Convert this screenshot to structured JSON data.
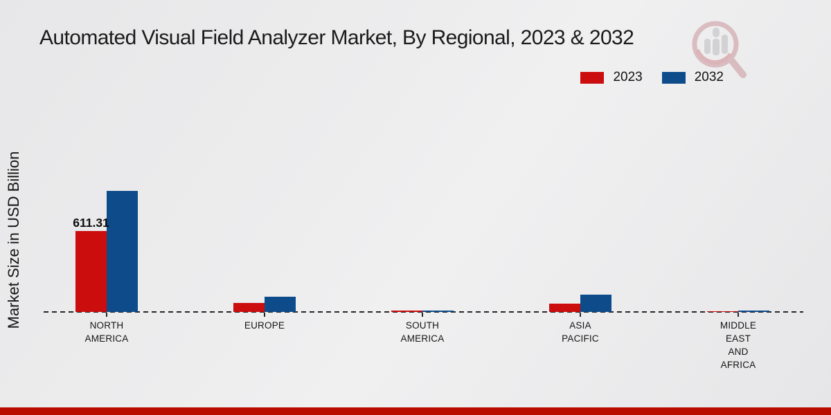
{
  "title": "Automated Visual Field Analyzer Market, By Regional, 2023 & 2032",
  "colors": {
    "bar_2023_red": "#cb0d0e",
    "bar_2032_blue": "#0d4b8a",
    "footer_red": "#b90b00",
    "background_gray": "#ebebed",
    "text": "#1a1a1a"
  },
  "legend": {
    "items": [
      {
        "label": "2023",
        "color": "#cb0d0e"
      },
      {
        "label": "2032",
        "color": "#0d4b8a"
      }
    ]
  },
  "watermark_icon": "magnifier-analytics-logo-watermark",
  "chart_data": {
    "type": "bar",
    "title": "Automated Visual Field Analyzer Market, By Regional, 2023 & 2032",
    "xlabel": "",
    "ylabel": "Market Size in USD Billion",
    "categories": [
      "NORTH\nAMERICA",
      "EUROPE",
      "SOUTH\nAMERICA",
      "ASIA\nPACIFIC",
      "MIDDLE\nEAST\nAND\nAFRICA"
    ],
    "series": [
      {
        "name": "2023",
        "color": "#cb0d0e",
        "values": [
          611.31,
          68,
          8,
          64,
          7
        ]
      },
      {
        "name": "2032",
        "color": "#0d4b8a",
        "values": [
          913,
          117,
          10,
          129,
          9
        ]
      }
    ],
    "value_labels": [
      {
        "series_index": 0,
        "category_index": 0,
        "text": "611.31"
      }
    ],
    "ylim": [
      0,
      960
    ],
    "grid": false,
    "baseline_style": "dashed",
    "legend_position": "top-right"
  }
}
